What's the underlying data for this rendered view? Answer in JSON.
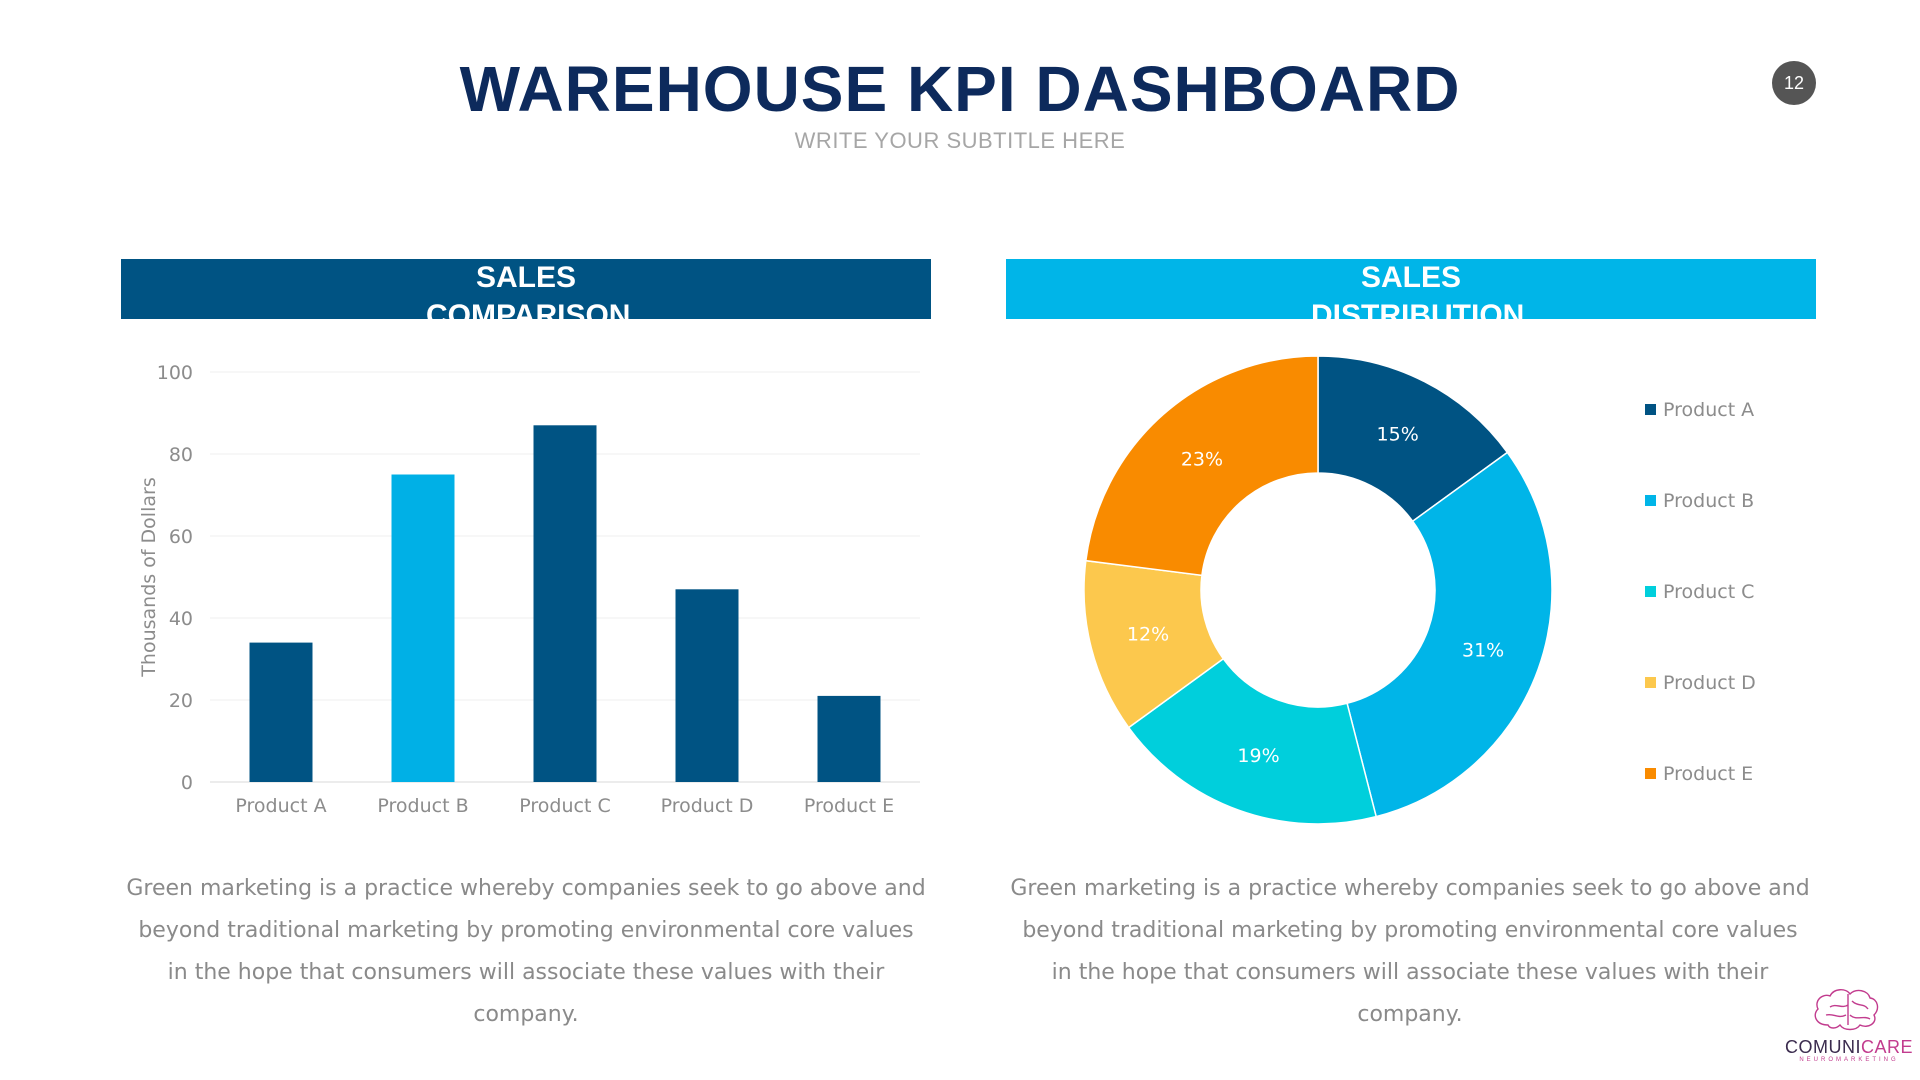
{
  "header": {
    "title": "WAREHOUSE KPI DASHBOARD",
    "subtitle": "WRITE YOUR SUBTITLE HERE",
    "page_number": "12"
  },
  "sections": {
    "left_title": "SALES COMPARISON",
    "right_title": "SALES DISTRIBUTION"
  },
  "descriptions": {
    "left": "Green marketing is a practice whereby companies seek to go above and beyond traditional marketing by promoting environmental core values in the hope that consumers will associate these values with their company.",
    "right": "Green marketing is a practice whereby companies seek to go above and beyond traditional marketing by promoting environmental core values in the hope that consumers will associate these values with their company."
  },
  "logo": {
    "name_part1": "COMUNI",
    "name_part2": "CARE",
    "tagline": "NEUROMARKETING"
  },
  "chart_data": [
    {
      "type": "bar",
      "title": "SALES COMPARISON",
      "categories": [
        "Product A",
        "Product B",
        "Product C",
        "Product D",
        "Product E"
      ],
      "values": [
        34,
        75,
        87,
        47,
        21
      ],
      "colors": [
        "#005383",
        "#00b0e6",
        "#005383",
        "#005383",
        "#005383"
      ],
      "ylabel": "Thousands of Dollars",
      "xlabel": "",
      "ylim": [
        0,
        100
      ],
      "yticks": [
        0,
        20,
        40,
        60,
        80,
        100
      ],
      "grid": true
    },
    {
      "type": "pie",
      "title": "SALES DISTRIBUTION",
      "donut": true,
      "labels": [
        "Product A",
        "Product B",
        "Product C",
        "Product D",
        "Product E"
      ],
      "values": [
        15,
        31,
        19,
        12,
        23
      ],
      "data_labels": [
        "15%",
        "31%",
        "19%",
        "12%",
        "23%"
      ],
      "colors": [
        "#005383",
        "#00b5e8",
        "#00cfdc",
        "#fcc84d",
        "#f98b00"
      ],
      "legend": "right"
    }
  ]
}
